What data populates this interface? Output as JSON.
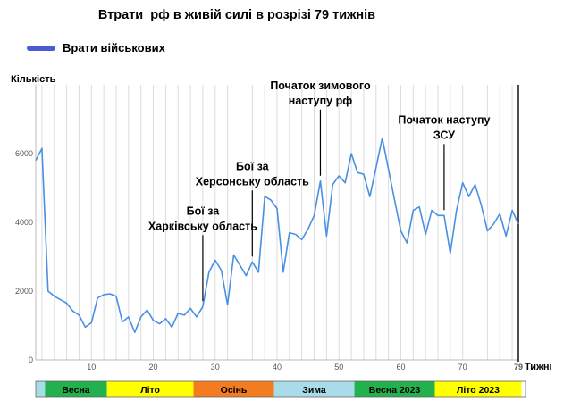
{
  "chart_data": {
    "type": "line",
    "title": "Втрати  рф в живій силі в розрізі 79 тижнів",
    "xlabel": "Тижні",
    "ylabel": "Кількість",
    "xlim": [
      1,
      79
    ],
    "ylim": [
      0,
      8000
    ],
    "x_ticks": [
      10,
      20,
      30,
      40,
      50,
      60,
      70,
      79
    ],
    "y_ticks": [
      0,
      2000,
      4000,
      6000
    ],
    "grid": "vertical",
    "legend": "top-left",
    "series": [
      {
        "name": "Врати військових",
        "color": "#4a90e2",
        "values": [
          5800,
          6150,
          2000,
          1850,
          1750,
          1650,
          1420,
          1300,
          950,
          1080,
          1800,
          1900,
          1920,
          1850,
          1100,
          1250,
          800,
          1250,
          1450,
          1150,
          1050,
          1200,
          950,
          1350,
          1300,
          1500,
          1250,
          1550,
          2550,
          2900,
          2600,
          1600,
          3050,
          2750,
          2450,
          2850,
          2550,
          4750,
          4650,
          4400,
          2550,
          3700,
          3650,
          3500,
          3800,
          4200,
          5200,
          3600,
          5100,
          5350,
          5150,
          6000,
          5450,
          5400,
          4750,
          5600,
          6450,
          5550,
          4650,
          3750,
          3400,
          4350,
          4450,
          3650,
          4350,
          4200,
          4200,
          3100,
          4350,
          5150,
          4750,
          5100,
          4500,
          3750,
          3950,
          4250,
          3600,
          4350,
          3950
        ]
      }
    ],
    "annotations": [
      {
        "week": 28,
        "lines": [
          "Бої за",
          "Харківську область"
        ]
      },
      {
        "week": 36,
        "lines": [
          "Бої за",
          "Херсонську область"
        ]
      },
      {
        "week": 47,
        "lines": [
          "Початок зимового",
          "наступу рф"
        ]
      },
      {
        "week": 67,
        "lines": [
          "Початок наступу",
          "ЗСУ"
        ]
      }
    ],
    "end_marker_label": "79",
    "seasons": [
      {
        "label": "",
        "from": 0.5,
        "to": 2.5,
        "color": "#a8dce8"
      },
      {
        "label": "Весна",
        "from": 2.5,
        "to": 12.5,
        "color": "#22b14c"
      },
      {
        "label": "Літо",
        "from": 12.5,
        "to": 26.5,
        "color": "#ffff00"
      },
      {
        "label": "Осінь",
        "from": 26.5,
        "to": 39.5,
        "color": "#f47c20"
      },
      {
        "label": "Зима",
        "from": 39.5,
        "to": 52.5,
        "color": "#a8dce8"
      },
      {
        "label": "Весна 2023",
        "from": 52.5,
        "to": 65.5,
        "color": "#22b14c"
      },
      {
        "label": "Літо 2023",
        "from": 65.5,
        "to": 79.5,
        "color": "#ffff00"
      }
    ]
  }
}
